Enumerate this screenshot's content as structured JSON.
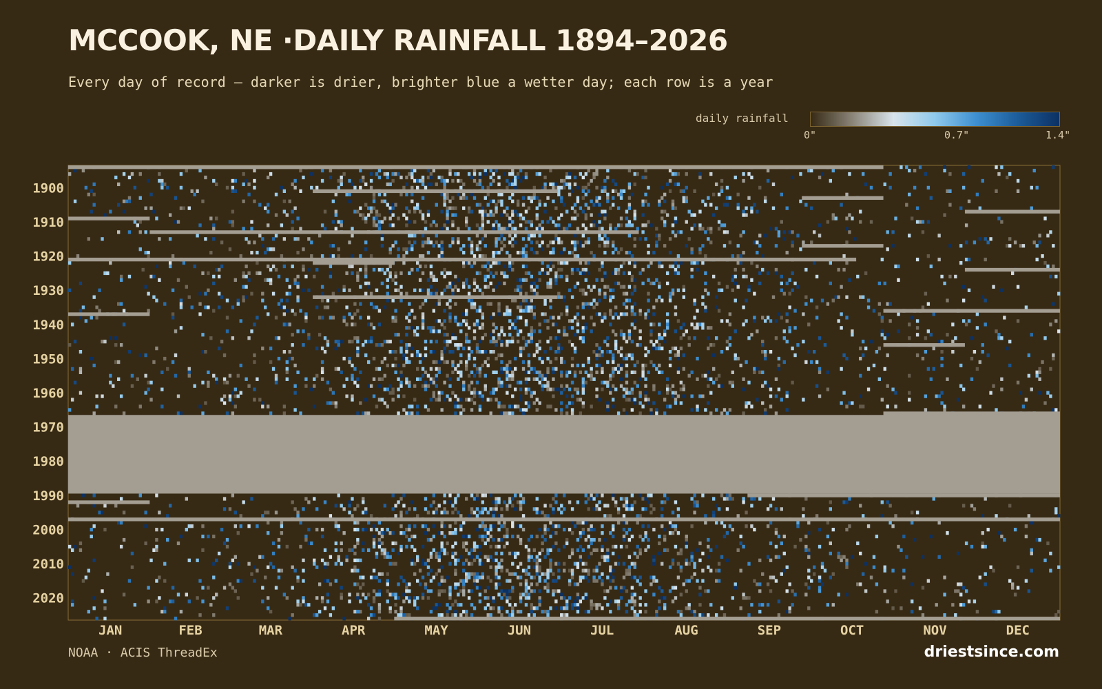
{
  "header": {
    "title": "MCCOOK, NE ·DAILY RAINFALL 1894–2026",
    "subtitle": "Every day of record — darker is drier, brighter blue a wetter day; each row is a year"
  },
  "legend": {
    "label": "daily rainfall",
    "ticks": [
      "0\"",
      "0.7\"",
      "1.4\""
    ]
  },
  "footer": {
    "source": "NOAA · ACIS ThreadEx",
    "brand": "driestsince.com"
  },
  "colors": {
    "background": "#372a15",
    "missing": "#a39d92",
    "axis_text": "#e6d3a3",
    "scale": [
      "#372a15",
      "#8a8478",
      "#d8e3ea",
      "#8fc9ec",
      "#3d8fd0",
      "#1c5c9a",
      "#0c3163"
    ]
  },
  "chart_data": {
    "type": "heatmap",
    "title": "MCCOOK, NE ·DAILY RAINFALL 1894–2026",
    "x_categories": [
      "JAN",
      "FEB",
      "MAR",
      "APR",
      "MAY",
      "JUN",
      "JUL",
      "AUG",
      "SEP",
      "OCT",
      "NOV",
      "DEC"
    ],
    "y_range": [
      1894,
      2026
    ],
    "y_ticks": [
      1900,
      1910,
      1920,
      1930,
      1940,
      1950,
      1960,
      1970,
      1980,
      1990,
      2000,
      2010,
      2020
    ],
    "color_scale": {
      "min": 0,
      "max": 1.4,
      "unit": "in"
    },
    "missing_data_years": "1967–1989",
    "note": "Each cell is one day; rows are years (1894 at top), columns are days of the year."
  }
}
